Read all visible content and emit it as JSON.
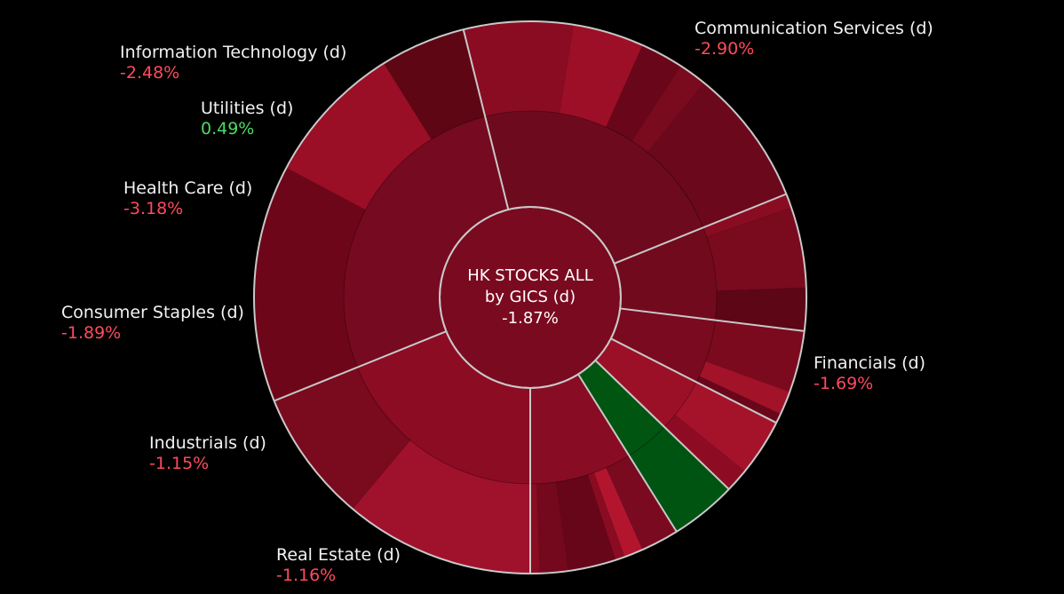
{
  "colors": {
    "background": "#000000",
    "separator": "#c8c8c8",
    "negative_text": "#ff4a5c",
    "positive_text": "#4cd964"
  },
  "center": {
    "line1": "HK STOCKS ALL",
    "line2": "by GICS (d)",
    "value": "-1.87%"
  },
  "chart_data": {
    "type": "sunburst",
    "title": "HK STOCKS ALL by GICS (d)",
    "total_change_pct": -1.87,
    "sectors": [
      {
        "name": "Communication Services (d)",
        "change_pct": -2.9,
        "change_label": "-2.90%",
        "weight": 68,
        "color": "#8c0c24",
        "children": [
          {
            "weight": 40,
            "color": "#a0122b"
          },
          {
            "weight": 28,
            "color": "#7a0a1e"
          }
        ]
      },
      {
        "name": "Financials (d)",
        "change_pct": -1.69,
        "change_label": "-1.69%",
        "weight": 98,
        "color": "#760a20",
        "children": [
          {
            "weight": 50,
            "color": "#6e0619"
          },
          {
            "weight": 30,
            "color": "#9a0e26"
          },
          {
            "weight": 18,
            "color": "#5e0614"
          }
        ]
      },
      {
        "name": "Real Estate (d)",
        "change_pct": -1.16,
        "change_label": "-1.16%",
        "weight": 82,
        "color": "#6e0a1e",
        "children": [
          {
            "weight": 23,
            "color": "#8a0c22"
          },
          {
            "weight": 15,
            "color": "#9c0f27"
          },
          {
            "weight": 9,
            "color": "#6a0619"
          },
          {
            "weight": 6,
            "color": "#7a0a1e"
          },
          {
            "weight": 29,
            "color": "#6c081c"
          }
        ]
      },
      {
        "name": "Industrials (d)",
        "change_pct": -1.15,
        "change_label": "-1.15%",
        "weight": 29,
        "color": "#720a1d",
        "children": [
          {
            "weight": 3,
            "color": "#8a0c22"
          },
          {
            "weight": 17,
            "color": "#7a0a1e"
          },
          {
            "weight": 9,
            "color": "#5c0616"
          }
        ]
      },
      {
        "name": "Consumer Staples (d)",
        "change_pct": -1.89,
        "change_label": "-1.89%",
        "weight": 20,
        "color": "#7a0a20",
        "children": [
          {
            "weight": 13,
            "color": "#7c0a1f"
          },
          {
            "weight": 5,
            "color": "#a21229"
          },
          {
            "weight": 2,
            "color": "#6a061a"
          }
        ]
      },
      {
        "name": "Health Care (d)",
        "change_pct": -3.18,
        "change_label": "-3.18%",
        "weight": 17,
        "color": "#9c1027",
        "children": [
          {
            "weight": 12,
            "color": "#a5132b"
          },
          {
            "weight": 5,
            "color": "#8e0c23"
          }
        ]
      },
      {
        "name": "Utilities (d)",
        "change_pct": 0.49,
        "change_label": "0.49%",
        "weight": 14,
        "color": "#005510",
        "children": [
          {
            "weight": 14,
            "color": "#005412"
          }
        ]
      },
      {
        "name": "Information Technology (d)",
        "change_pct": -2.48,
        "change_label": "-2.48%",
        "weight": 32,
        "color": "#880c24",
        "children": [
          {
            "weight": 8,
            "color": "#7a0a20"
          },
          {
            "weight": 4,
            "color": "#b3152f"
          },
          {
            "weight": 2,
            "color": "#8a0c22"
          },
          {
            "weight": 10,
            "color": "#680619"
          },
          {
            "weight": 6,
            "color": "#74081c"
          },
          {
            "weight": 2,
            "color": "#8a0c22"
          }
        ]
      }
    ]
  }
}
